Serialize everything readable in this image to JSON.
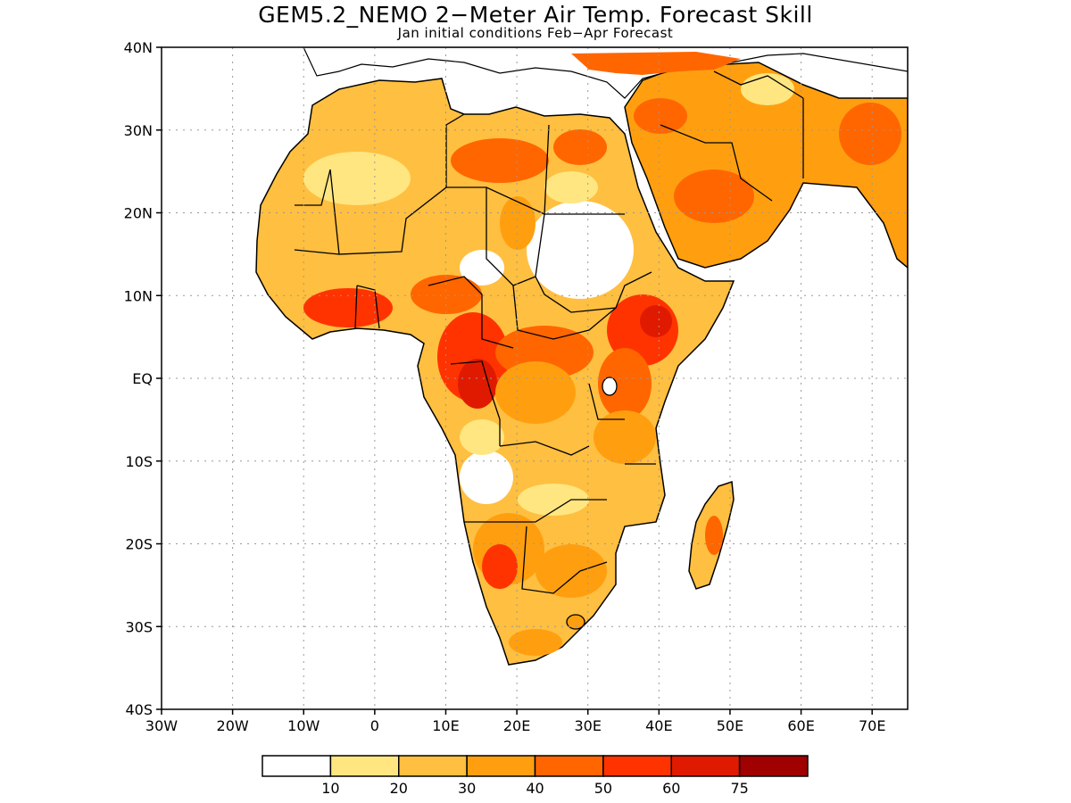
{
  "title": "GEM5.2_NEMO 2−Meter Air Temp. Forecast Skill",
  "subtitle": "Jan initial conditions  Feb−Apr Forecast",
  "axes": {
    "lat_ticks": [
      "40N",
      "30N",
      "20N",
      "10N",
      "EQ",
      "10S",
      "20S",
      "30S",
      "40S"
    ],
    "lon_ticks": [
      "30W",
      "20W",
      "10W",
      "0",
      "10E",
      "20E",
      "30E",
      "40E",
      "50E",
      "60E",
      "70E"
    ],
    "lat_range": [
      -40,
      40
    ],
    "lon_range": [
      -30,
      75
    ],
    "grid": "dotted"
  },
  "legend": {
    "placement": "bottom",
    "bin_colors": [
      "#ffffff",
      "#ffe680",
      "#ffbf40",
      "#ff9f0f",
      "#ff6600",
      "#ff3300",
      "#e01a00",
      "#a00000"
    ],
    "labels": [
      "10",
      "20",
      "30",
      "40",
      "50",
      "60",
      "75"
    ]
  },
  "colors": {
    "land_low": "#ffffff",
    "land_base": "#ffbf40",
    "coast": "#000000"
  }
}
